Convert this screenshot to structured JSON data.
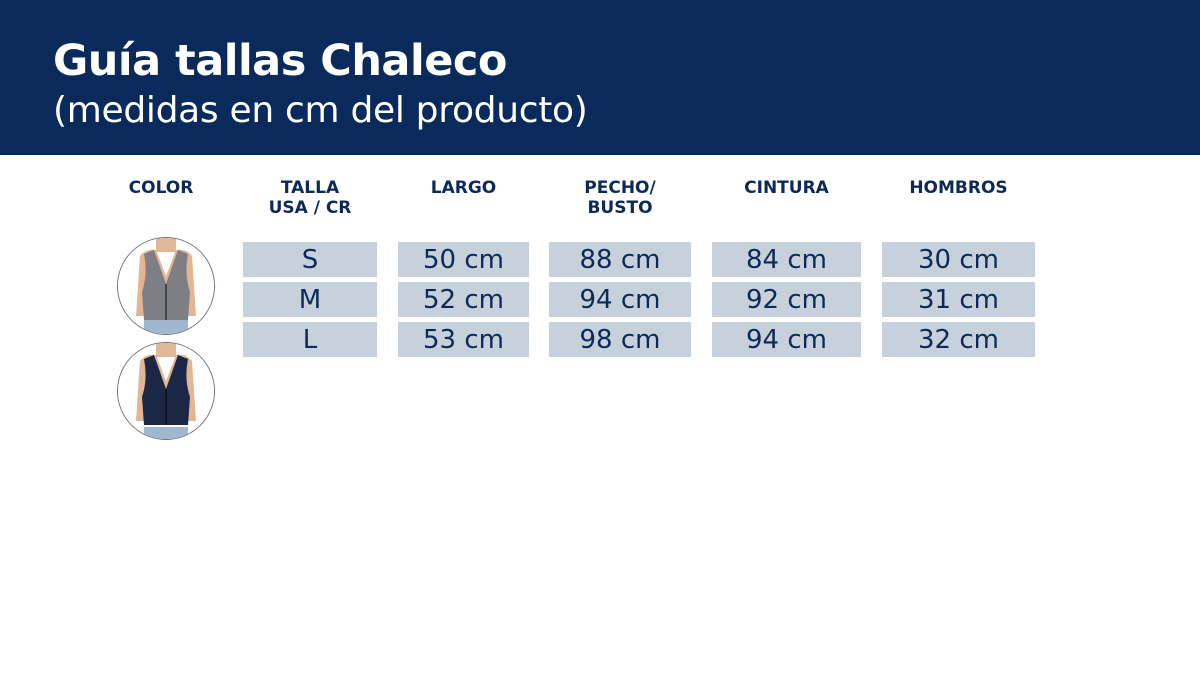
{
  "header": {
    "title": "Guía tallas Chaleco",
    "subtitle": "(medidas en cm del producto)"
  },
  "columns": {
    "color": "COLOR",
    "talla": "TALLA\nUSA / CR",
    "largo": "LARGO",
    "pecho": "PECHO/\nBUSTO",
    "cintura": "CINTURA",
    "hombros": "HOMBROS"
  },
  "colors": [
    {
      "name": "gray-vest",
      "hex": "#7d7f84"
    },
    {
      "name": "navy-vest",
      "hex": "#1c2745"
    }
  ],
  "rows": [
    {
      "talla": "S",
      "largo": "50 cm",
      "pecho": "88 cm",
      "cintura": "84 cm",
      "hombros": "30 cm"
    },
    {
      "talla": "M",
      "largo": "52 cm",
      "pecho": "94 cm",
      "cintura": "92 cm",
      "hombros": "31 cm"
    },
    {
      "talla": "L",
      "largo": "53 cm",
      "pecho": "98 cm",
      "cintura": "94 cm",
      "hombros": "32 cm"
    }
  ]
}
